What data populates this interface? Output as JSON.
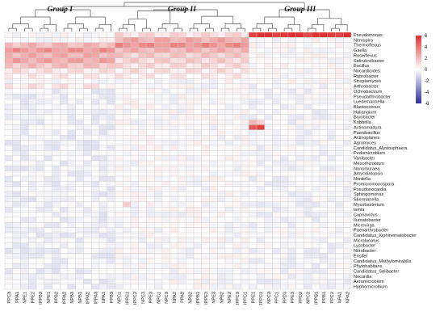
{
  "chart_data": {
    "type": "heatmap",
    "title": "",
    "xlabel": "",
    "ylabel": "",
    "colors": {
      "low": "#2b2f9e",
      "mid": "#ffffff",
      "high": "#e03131",
      "grid": "#c8c8c8",
      "dendro": "#555555"
    },
    "scale": {
      "min": -6,
      "max": 6,
      "ticks": [
        6,
        4,
        2,
        0,
        -2,
        -4,
        -6
      ]
    },
    "groups": [
      {
        "name": "Group I",
        "from": 0,
        "to": 13
      },
      {
        "name": "Group II",
        "from": 14,
        "to": 30
      },
      {
        "name": "Group III",
        "from": 31,
        "to": 43
      }
    ],
    "columns": [
      "PPC3",
      "PPA1",
      "NPE1",
      "PPE2",
      "IPPB2",
      "NPE1",
      "PPB2",
      "IPPA2",
      "NPB3",
      "NPB1",
      "IPPA2",
      "IPPA3",
      "NPA1",
      "PPB3",
      "NPC1",
      "IPPE1",
      "IPPC2",
      "NPC3",
      "PPE3",
      "NPC1",
      "NPC3",
      "NPA2",
      "PPA2",
      "NPB2",
      "IPPB1",
      "IPPE3",
      "NPE3",
      "NPB2",
      "NPE2",
      "IPPC3",
      "IPPC1",
      "PPE1",
      "IPPC1",
      "NPC2",
      "PPC1",
      "PPD3",
      "PPE3",
      "PPD2",
      "NPC2",
      "IPPB1",
      "PPB1",
      "PPC2",
      "NPA1",
      "NPA2"
    ],
    "rows": [
      "Pseudomonas",
      "Nitrospira",
      "Thermoflexus",
      "Gaella",
      "Roseiflexus",
      "Solirubrobacter",
      "Bacillus",
      "Nocardioides",
      "Rubrobacter",
      "Streptomyces",
      "Arthrobacter",
      "Ochrobactrum",
      "Pseudarthrobacter",
      "Luedemannella",
      "Blastococcus",
      "Haliangium",
      "Bryobacter",
      "Kribbella",
      "Actinomadura",
      "Paenibacillus",
      "Actinoplanes",
      "Agromyces",
      "Candidatus_Alysiosphaera",
      "Pedomicrobium",
      "Vanibacter",
      "Mesorhizobium",
      "Nonomuraea",
      "Amycolatopsis",
      "Nordella",
      "Promicromonospora",
      "Pseudonocardia",
      "Sphingomonas",
      "Skermanella",
      "Mycobacterium",
      "lamia",
      "Cupriavidus",
      "Ilumatobacter",
      "Microvirga",
      "Paenarthrobacter",
      "Candidatus_Xiphinematobacter",
      "Microlunatus",
      "Lysobacter",
      "Nitrobacter",
      "Ensifer",
      "Candidatus_Methylomirabilis",
      "Phytohabitans",
      "Candidatus_Solibacter",
      "Nocardia",
      "Aeromicrobium",
      "Hyphomicrobium"
    ],
    "highlights": [
      {
        "row": 0,
        "from": 31,
        "to": 43,
        "value": 6.0
      },
      {
        "row": 0,
        "from": 14,
        "to": 30,
        "value": 1.0
      },
      {
        "row": 1,
        "from": 14,
        "to": 30,
        "value": 2.4
      },
      {
        "row": 2,
        "from": 14,
        "to": 30,
        "value": 3.2
      },
      {
        "row": 2,
        "from": 0,
        "to": 13,
        "value": 2.0
      },
      {
        "row": 3,
        "from": 0,
        "to": 13,
        "value": 3.0
      },
      {
        "row": 3,
        "from": 14,
        "to": 30,
        "value": 2.2
      },
      {
        "row": 4,
        "from": 0,
        "to": 13,
        "value": 2.3
      },
      {
        "row": 4,
        "from": 14,
        "to": 30,
        "value": 1.5
      },
      {
        "row": 5,
        "from": 0,
        "to": 13,
        "value": 2.5
      },
      {
        "row": 5,
        "from": 14,
        "to": 30,
        "value": 1.3
      },
      {
        "row": 6,
        "from": 0,
        "to": 13,
        "value": 1.8
      },
      {
        "row": 6,
        "from": 14,
        "to": 30,
        "value": 1.0
      },
      {
        "row": 7,
        "from": 0,
        "to": 30,
        "value": 0.8
      },
      {
        "row": 8,
        "from": 0,
        "to": 30,
        "value": 0.5
      },
      {
        "row": 10,
        "from": 0,
        "to": 13,
        "value": 0.7
      },
      {
        "row": 18,
        "from": 31,
        "to": 32,
        "value": 5.5
      },
      {
        "row": 17,
        "from": 31,
        "to": 32,
        "value": 1.5
      },
      {
        "row": 33,
        "from": 15,
        "to": 15,
        "value": 2.0
      }
    ]
  }
}
